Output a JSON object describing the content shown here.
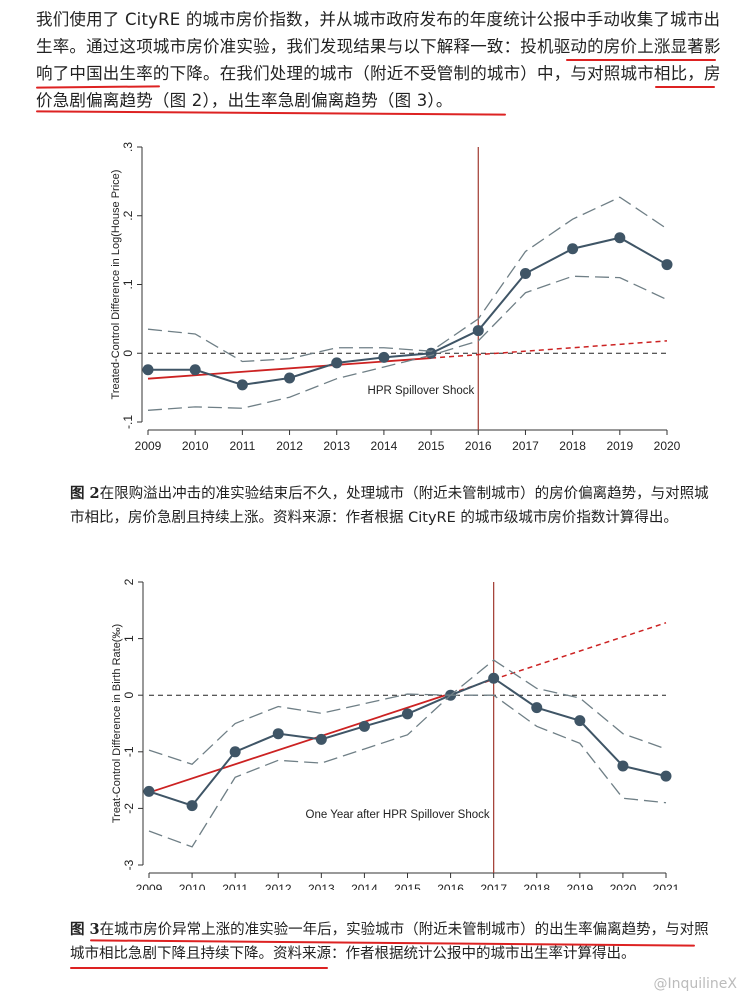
{
  "paragraph": "我们使用了 CityRE 的城市房价指数，并从城市政府发布的年度统计公报中手动收集了城市出生率。通过这项城市房价准实验，我们发现结果与以下解释一致：投机驱动的房价上涨显著影响了中国出生率的下降。在我们处理的城市（附近不受管制的城市）中，与对照城市相比，房价急剧偏离趋势（图 2），出生率急剧偏离趋势（图 3）。",
  "figure2_caption": {
    "label": "图 2",
    "text": "在限购溢出冲击的准实验结束后不久，处理城市（附近未管制城市）的房价偏离趋势，与对照城市相比，房价急剧且持续上涨。资料来源：作者根据 CityRE 的城市级城市房价指数计算得出。"
  },
  "figure3_caption": {
    "label": "图 3",
    "text": "在城市房价异常上涨的准实验一年后，实验城市（附近未管制城市）的出生率偏离趋势，与对照城市相比急剧下降且持续下降。资料来源：作者根据统计公报中的城市出生率计算得出。"
  },
  "watermark": "@InquilineX",
  "colors": {
    "series": "#3f5566",
    "trend": "#cc2222",
    "shock": "#a0382f",
    "underline": "#d22222"
  },
  "chart_data": [
    {
      "type": "line",
      "ylabel": "Treated-Control Difference in Log(House Price)",
      "x": [
        2009,
        2010,
        2011,
        2012,
        2013,
        2014,
        2015,
        2016,
        2017,
        2018,
        2019,
        2020
      ],
      "ylim": [
        -0.1,
        0.3
      ],
      "yticks": [
        -0.1,
        0,
        0.1,
        0.2,
        0.3
      ],
      "ytick_labels": [
        "-.1",
        "0",
        ".1",
        ".2",
        ".3"
      ],
      "annotation": "HPR Spillover Shock",
      "shock_year": 2016,
      "series": [
        {
          "name": "estimate",
          "values": [
            -0.024,
            -0.024,
            -0.046,
            -0.036,
            -0.014,
            -0.006,
            0.0,
            0.033,
            0.116,
            0.152,
            0.168,
            0.129
          ]
        },
        {
          "name": "ci_upper",
          "values": [
            0.035,
            0.028,
            -0.012,
            -0.008,
            0.008,
            0.008,
            0.003,
            0.05,
            0.148,
            0.195,
            0.227,
            0.181
          ]
        },
        {
          "name": "ci_lower",
          "values": [
            -0.083,
            -0.078,
            -0.08,
            -0.064,
            -0.037,
            -0.02,
            -0.003,
            0.018,
            0.088,
            0.112,
            0.11,
            0.078
          ]
        }
      ],
      "trend": {
        "x": [
          2009,
          2020
        ],
        "values": [
          -0.037,
          0.018
        ],
        "solid_until": 2015
      }
    },
    {
      "type": "line",
      "ylabel": "Treat-Control Difference in Birth Rate(‰)",
      "x": [
        2009,
        2010,
        2011,
        2012,
        2013,
        2014,
        2015,
        2016,
        2017,
        2018,
        2019,
        2020,
        2021
      ],
      "ylim": [
        -3,
        2
      ],
      "yticks": [
        -3,
        -2,
        -1,
        0,
        1,
        2
      ],
      "ytick_labels": [
        "-3",
        "-2",
        "-1",
        "0",
        "1",
        "2"
      ],
      "annotation": "One Year after HPR Spillover Shock",
      "shock_year": 2017,
      "series": [
        {
          "name": "estimate",
          "values": [
            -1.7,
            -1.95,
            -1.0,
            -0.68,
            -0.78,
            -0.55,
            -0.33,
            0.0,
            0.3,
            -0.22,
            -0.45,
            -1.25,
            -1.43
          ]
        },
        {
          "name": "ci_upper",
          "values": [
            -0.97,
            -1.22,
            -0.5,
            -0.2,
            -0.32,
            -0.15,
            0.02,
            0.0,
            0.62,
            0.12,
            -0.05,
            -0.68,
            -0.95
          ]
        },
        {
          "name": "ci_lower",
          "values": [
            -2.4,
            -2.68,
            -1.45,
            -1.15,
            -1.2,
            -0.95,
            -0.7,
            0.0,
            0.0,
            -0.55,
            -0.85,
            -1.82,
            -1.9
          ]
        }
      ],
      "trend": {
        "x": [
          2009,
          2021
        ],
        "values": [
          -1.72,
          1.28
        ],
        "solid_until": 2016
      }
    }
  ]
}
